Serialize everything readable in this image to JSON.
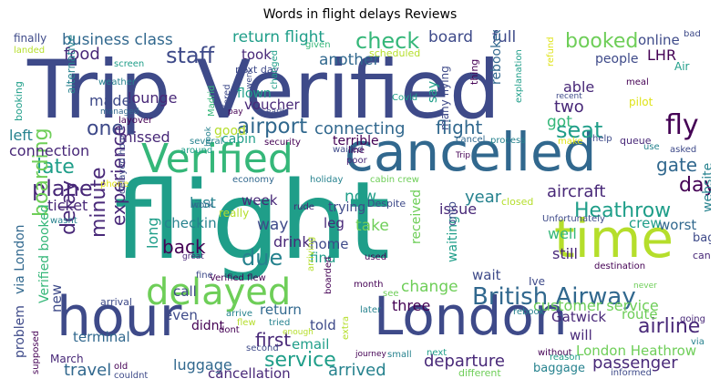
{
  "title": "Words in flight delays Reviews",
  "palette": {
    "purple": "#440154",
    "indigo": "#482878",
    "navy": "#3e4a89",
    "blue": "#31688e",
    "teal": "#26828e",
    "green_teal": "#1f9e89",
    "green": "#35b779",
    "light_green": "#6ece58",
    "lime": "#b5de2b",
    "yellow": "#dfe318"
  },
  "words": [
    {
      "text": "Trip Verified",
      "c": "navy"
    },
    {
      "text": "flight",
      "c": "green_teal"
    },
    {
      "text": "cancelled",
      "c": "blue"
    },
    {
      "text": "hour",
      "c": "navy"
    },
    {
      "text": "London",
      "c": "navy"
    },
    {
      "text": "time",
      "c": "lime"
    },
    {
      "text": "Verified",
      "c": "green"
    },
    {
      "text": "delayed",
      "c": "light_green"
    },
    {
      "text": "British Airway",
      "c": "blue"
    },
    {
      "text": "business class",
      "c": "blue"
    },
    {
      "text": "staff",
      "c": "navy"
    },
    {
      "text": "check",
      "c": "green"
    },
    {
      "text": "booked",
      "c": "light_green"
    },
    {
      "text": "food",
      "c": "indigo"
    },
    {
      "text": "return flight",
      "c": "green_teal"
    },
    {
      "text": "board",
      "c": "navy"
    },
    {
      "text": "full",
      "c": "navy"
    },
    {
      "text": "online",
      "c": "navy"
    },
    {
      "text": "another",
      "c": "blue"
    },
    {
      "text": "people",
      "c": "navy"
    },
    {
      "text": "LHR",
      "c": "purple"
    },
    {
      "text": "took",
      "c": "indigo"
    },
    {
      "text": "seat",
      "c": "green_teal"
    },
    {
      "text": "fly",
      "c": "purple"
    },
    {
      "text": "airport",
      "c": "blue"
    },
    {
      "text": "connecting",
      "c": "blue"
    },
    {
      "text": "flight",
      "c": "blue"
    },
    {
      "text": "one",
      "c": "navy"
    },
    {
      "text": "missed",
      "c": "indigo"
    },
    {
      "text": "lounge",
      "c": "indigo"
    },
    {
      "text": "made",
      "c": "navy"
    },
    {
      "text": "voucher",
      "c": "indigo"
    },
    {
      "text": "late",
      "c": "green_teal"
    },
    {
      "text": "plane",
      "c": "indigo"
    },
    {
      "text": "aircraft",
      "c": "indigo"
    },
    {
      "text": "day",
      "c": "purple"
    },
    {
      "text": "gate",
      "c": "blue"
    },
    {
      "text": "Heathrow",
      "c": "green_teal"
    },
    {
      "text": "delay",
      "c": "indigo"
    },
    {
      "text": "minute",
      "c": "indigo"
    },
    {
      "text": "due",
      "c": "teal"
    },
    {
      "text": "back",
      "c": "purple"
    },
    {
      "text": "week",
      "c": "indigo"
    },
    {
      "text": "year",
      "c": "teal"
    },
    {
      "text": "crew",
      "c": "green_teal"
    },
    {
      "text": "worst",
      "c": "blue"
    },
    {
      "text": "service",
      "c": "green_teal"
    },
    {
      "text": "airline",
      "c": "indigo"
    },
    {
      "text": "first",
      "c": "indigo"
    },
    {
      "text": "customer service",
      "c": "light_green"
    },
    {
      "text": "arrived",
      "c": "teal"
    },
    {
      "text": "departure",
      "c": "indigo"
    },
    {
      "text": "passenger",
      "c": "indigo"
    },
    {
      "text": "travel",
      "c": "blue"
    },
    {
      "text": "luggage",
      "c": "blue"
    },
    {
      "text": "London Heathrow",
      "c": "light_green"
    },
    {
      "text": "Gatwick",
      "c": "indigo"
    },
    {
      "text": "route",
      "c": "light_green"
    },
    {
      "text": "will",
      "c": "indigo"
    },
    {
      "text": "cancellation",
      "c": "indigo"
    },
    {
      "text": "terminal",
      "c": "blue"
    },
    {
      "text": "boarding",
      "c": "light_green"
    },
    {
      "text": "experience",
      "c": "indigo"
    },
    {
      "text": "ticket",
      "c": "indigo"
    },
    {
      "text": "connection",
      "c": "indigo"
    },
    {
      "text": "left",
      "c": "teal"
    },
    {
      "text": "cabin",
      "c": "green_teal"
    },
    {
      "text": "two",
      "c": "indigo"
    },
    {
      "text": "got",
      "c": "green"
    },
    {
      "text": "able",
      "c": "indigo"
    },
    {
      "text": "rebooked",
      "c": "blue"
    },
    {
      "text": "terrible",
      "c": "purple"
    },
    {
      "text": "flown",
      "c": "green_teal"
    },
    {
      "text": "good",
      "c": "lime"
    },
    {
      "text": "say",
      "c": "green_teal"
    },
    {
      "text": "last",
      "c": "teal"
    },
    {
      "text": "checkin",
      "c": "teal"
    },
    {
      "text": "way",
      "c": "navy"
    },
    {
      "text": "drink",
      "c": "indigo"
    },
    {
      "text": "call",
      "c": "navy"
    },
    {
      "text": "leg",
      "c": "indigo"
    },
    {
      "text": "take",
      "c": "light_green"
    },
    {
      "text": "now",
      "c": "green_teal"
    },
    {
      "text": "trying",
      "c": "navy"
    },
    {
      "text": "home",
      "c": "navy"
    },
    {
      "text": "find",
      "c": "green_teal"
    },
    {
      "text": "three",
      "c": "purple"
    },
    {
      "text": "issue",
      "c": "indigo"
    },
    {
      "text": "received",
      "c": "light_green"
    },
    {
      "text": "waiting",
      "c": "green_teal"
    },
    {
      "text": "well",
      "c": "green"
    },
    {
      "text": "still",
      "c": "indigo"
    },
    {
      "text": "wait",
      "c": "navy"
    },
    {
      "text": "change",
      "c": "light_green"
    },
    {
      "text": "even",
      "c": "navy"
    },
    {
      "text": "return",
      "c": "blue"
    },
    {
      "text": "told",
      "c": "navy"
    },
    {
      "text": "email",
      "c": "green_teal"
    },
    {
      "text": "didnt",
      "c": "purple"
    },
    {
      "text": "new",
      "c": "navy"
    },
    {
      "text": "website",
      "c": "teal"
    },
    {
      "text": "many flying",
      "c": "navy"
    },
    {
      "text": "long",
      "c": "green_teal"
    },
    {
      "text": "via London",
      "c": "blue"
    },
    {
      "text": "Verified booked",
      "c": "green"
    },
    {
      "text": "problem",
      "c": "navy"
    },
    {
      "text": "March",
      "c": "indigo"
    },
    {
      "text": "finally",
      "c": "navy"
    },
    {
      "text": "landed",
      "c": "lime"
    },
    {
      "text": "alternative",
      "c": "teal"
    },
    {
      "text": "booking",
      "c": "green_teal"
    },
    {
      "text": "screen",
      "c": "green_teal"
    },
    {
      "text": "weather",
      "c": "teal"
    },
    {
      "text": "managed",
      "c": "blue"
    },
    {
      "text": "Madrid",
      "c": "green"
    },
    {
      "text": "offered",
      "c": "navy"
    },
    {
      "text": "layover",
      "c": "purple"
    },
    {
      "text": "next day",
      "c": "navy"
    },
    {
      "text": "went",
      "c": "navy"
    },
    {
      "text": "changed",
      "c": "green_teal"
    },
    {
      "text": "given",
      "c": "green"
    },
    {
      "text": "scheduled",
      "c": "lime"
    },
    {
      "text": "thing",
      "c": "purple"
    },
    {
      "text": "explanation",
      "c": "green_teal"
    },
    {
      "text": "refund",
      "c": "yellow"
    },
    {
      "text": "meal",
      "c": "purple"
    },
    {
      "text": "recent",
      "c": "navy"
    },
    {
      "text": "pilot",
      "c": "yellow"
    },
    {
      "text": "bad",
      "c": "navy"
    },
    {
      "text": "Air",
      "c": "green_teal"
    },
    {
      "text": "Covid",
      "c": "green_teal"
    },
    {
      "text": "pay",
      "c": "purple"
    },
    {
      "text": "early",
      "c": "navy"
    },
    {
      "text": "security",
      "c": "purple"
    },
    {
      "text": "waited",
      "c": "navy"
    },
    {
      "text": "line",
      "c": "purple"
    },
    {
      "text": "poor",
      "c": "indigo"
    },
    {
      "text": "Trip",
      "c": "purple"
    },
    {
      "text": "cancel",
      "c": "blue"
    },
    {
      "text": "process",
      "c": "teal"
    },
    {
      "text": "make",
      "c": "yellow"
    },
    {
      "text": "help",
      "c": "navy"
    },
    {
      "text": "queue",
      "c": "indigo"
    },
    {
      "text": "use",
      "c": "teal"
    },
    {
      "text": "asked",
      "c": "navy"
    },
    {
      "text": "several",
      "c": "teal"
    },
    {
      "text": "around",
      "c": "green_teal"
    },
    {
      "text": "book",
      "c": "teal"
    },
    {
      "text": "phone",
      "c": "yellow"
    },
    {
      "text": "economy",
      "c": "blue"
    },
    {
      "text": "holiday",
      "c": "teal"
    },
    {
      "text": "cabin crew",
      "c": "light_green"
    },
    {
      "text": "Despite",
      "c": "navy"
    },
    {
      "text": "closed",
      "c": "lime"
    },
    {
      "text": "Unfortunately",
      "c": "navy"
    },
    {
      "text": "work",
      "c": "blue"
    },
    {
      "text": "really",
      "c": "lime"
    },
    {
      "text": "rude",
      "c": "indigo"
    },
    {
      "text": "wasnt",
      "c": "teal"
    },
    {
      "text": "delayed hour",
      "c": "navy"
    },
    {
      "text": "great",
      "c": "indigo"
    },
    {
      "text": "Manchester",
      "c": "green_teal"
    },
    {
      "text": "onto",
      "c": "navy"
    },
    {
      "text": "bag",
      "c": "navy"
    },
    {
      "text": "cant",
      "c": "indigo"
    },
    {
      "text": "arriving",
      "c": "lime"
    },
    {
      "text": "used",
      "c": "purple"
    },
    {
      "text": "fine",
      "c": "navy"
    },
    {
      "text": "destination",
      "c": "purple"
    },
    {
      "text": "Verified flew",
      "c": "purple"
    },
    {
      "text": "month",
      "c": "purple"
    },
    {
      "text": "Ive",
      "c": "navy"
    },
    {
      "text": "never",
      "c": "light_green"
    },
    {
      "text": "arrival",
      "c": "navy"
    },
    {
      "text": "see",
      "c": "light_green"
    },
    {
      "text": "boarded",
      "c": "purple"
    },
    {
      "text": "arrive",
      "c": "teal"
    },
    {
      "text": "flew",
      "c": "lime"
    },
    {
      "text": "tried",
      "c": "teal"
    },
    {
      "text": "later",
      "c": "teal"
    },
    {
      "text": "rebook",
      "c": "teal"
    },
    {
      "text": "going",
      "c": "indigo"
    },
    {
      "text": "dont",
      "c": "purple"
    },
    {
      "text": "enough",
      "c": "lime"
    },
    {
      "text": "extra",
      "c": "lime"
    },
    {
      "text": "via",
      "c": "teal"
    },
    {
      "text": "supposed",
      "c": "purple"
    },
    {
      "text": "second",
      "c": "navy"
    },
    {
      "text": "journey",
      "c": "purple"
    },
    {
      "text": "small",
      "c": "teal"
    },
    {
      "text": "next",
      "c": "green_teal"
    },
    {
      "text": "without",
      "c": "purple"
    },
    {
      "text": "reason",
      "c": "green_teal"
    },
    {
      "text": "baggage",
      "c": "teal"
    },
    {
      "text": "old",
      "c": "purple"
    },
    {
      "text": "couldnt",
      "c": "navy"
    },
    {
      "text": "different",
      "c": "light_green"
    },
    {
      "text": "informed",
      "c": "navy"
    }
  ]
}
